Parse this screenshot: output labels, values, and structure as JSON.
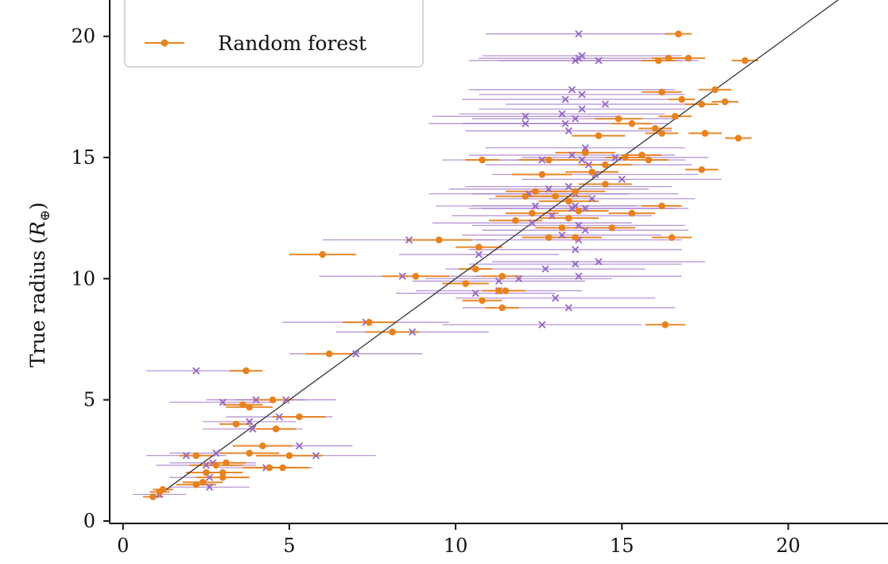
{
  "chart_data": {
    "type": "scatter",
    "title": "",
    "xlabel": "",
    "ylabel_main": "True radius (",
    "ylabel_symbol": "R",
    "ylabel_sub": "⊕",
    "ylabel_close": ")",
    "xlim": [
      -0.4,
      23.0
    ],
    "ylim": [
      -0.1,
      21.5
    ],
    "xticks": [
      0,
      5,
      10,
      15,
      20
    ],
    "yticks": [
      0,
      5,
      10,
      15,
      20
    ],
    "grid": false,
    "legend_position": "top-left",
    "legend_entries": [
      "Random forest"
    ],
    "reference_line": {
      "from": [
        0.9,
        0.9
      ],
      "to": [
        21.5,
        21.5
      ],
      "color": "#333333"
    },
    "series": [
      {
        "name": "Random forest",
        "marker": "circle",
        "color": "#e8821e",
        "points": [
          [
            0.9,
            1.0,
            0.3
          ],
          [
            1.2,
            1.3,
            0.3
          ],
          [
            1.1,
            1.2,
            0.3
          ],
          [
            2.2,
            1.5,
            0.6
          ],
          [
            2.4,
            1.6,
            0.6
          ],
          [
            2.5,
            2.0,
            0.6
          ],
          [
            2.8,
            2.3,
            0.8
          ],
          [
            3.0,
            2.0,
            0.6
          ],
          [
            3.1,
            2.4,
            0.6
          ],
          [
            2.2,
            2.7,
            0.5
          ],
          [
            3.0,
            1.8,
            0.8
          ],
          [
            4.8,
            2.2,
            0.8
          ],
          [
            4.4,
            2.2,
            0.8
          ],
          [
            5.0,
            2.7,
            1.0
          ],
          [
            4.2,
            3.1,
            0.9
          ],
          [
            3.8,
            2.8,
            0.9
          ],
          [
            3.4,
            4.0,
            0.5
          ],
          [
            3.6,
            4.8,
            0.6
          ],
          [
            4.5,
            5.0,
            0.6
          ],
          [
            3.8,
            4.7,
            0.7
          ],
          [
            4.6,
            3.8,
            0.6
          ],
          [
            5.3,
            4.3,
            0.8
          ],
          [
            3.7,
            6.2,
            0.5
          ],
          [
            6.2,
            6.9,
            0.7
          ],
          [
            8.1,
            7.8,
            0.8
          ],
          [
            7.4,
            8.2,
            0.8
          ],
          [
            6.0,
            11.0,
            1.0
          ],
          [
            8.8,
            10.1,
            1.0
          ],
          [
            9.5,
            11.6,
            1.0
          ],
          [
            10.3,
            9.8,
            0.7
          ],
          [
            10.8,
            9.1,
            0.6
          ],
          [
            10.8,
            14.9,
            0.5
          ],
          [
            10.6,
            10.4,
            0.5
          ],
          [
            10.7,
            11.3,
            0.7
          ],
          [
            11.3,
            9.5,
            0.5
          ],
          [
            11.4,
            8.8,
            0.5
          ],
          [
            11.5,
            9.5,
            0.6
          ],
          [
            11.4,
            10.1,
            0.6
          ],
          [
            11.8,
            12.4,
            0.8
          ],
          [
            12.3,
            12.7,
            0.8
          ],
          [
            12.1,
            13.4,
            0.9
          ],
          [
            12.6,
            14.3,
            0.9
          ],
          [
            12.8,
            14.9,
            0.9
          ],
          [
            13.0,
            13.4,
            1.0
          ],
          [
            13.4,
            13.2,
            0.9
          ],
          [
            13.6,
            13.6,
            0.9
          ],
          [
            13.7,
            12.8,
            0.9
          ],
          [
            13.9,
            15.2,
            0.9
          ],
          [
            14.1,
            14.4,
            0.8
          ],
          [
            14.3,
            15.9,
            0.8
          ],
          [
            14.5,
            14.7,
            0.8
          ],
          [
            14.9,
            16.6,
            0.7
          ],
          [
            15.1,
            15.0,
            0.6
          ],
          [
            15.3,
            16.4,
            0.6
          ],
          [
            15.6,
            15.1,
            0.6
          ],
          [
            15.8,
            14.9,
            0.6
          ],
          [
            16.0,
            16.2,
            0.5
          ],
          [
            16.2,
            16.0,
            0.5
          ],
          [
            16.2,
            17.7,
            0.6
          ],
          [
            16.4,
            19.1,
            0.5
          ],
          [
            16.6,
            16.7,
            0.5
          ],
          [
            16.7,
            20.1,
            0.4
          ],
          [
            16.8,
            17.4,
            0.4
          ],
          [
            17.0,
            19.1,
            0.5
          ],
          [
            17.4,
            17.2,
            0.5
          ],
          [
            17.5,
            16.0,
            0.5
          ],
          [
            17.4,
            14.5,
            0.5
          ],
          [
            17.8,
            17.8,
            0.5
          ],
          [
            18.1,
            17.3,
            0.4
          ],
          [
            18.5,
            15.8,
            0.4
          ],
          [
            18.7,
            19.0,
            0.4
          ],
          [
            16.1,
            19.0,
            0.5
          ],
          [
            16.2,
            13.0,
            0.6
          ],
          [
            16.5,
            11.7,
            0.6
          ],
          [
            16.3,
            8.1,
            0.6
          ],
          [
            15.3,
            12.7,
            0.7
          ],
          [
            14.7,
            12.1,
            0.7
          ],
          [
            14.5,
            13.9,
            0.8
          ],
          [
            13.6,
            11.7,
            0.8
          ],
          [
            13.2,
            12.1,
            0.8
          ],
          [
            12.8,
            11.7,
            0.8
          ],
          [
            12.4,
            13.6,
            0.9
          ],
          [
            13.4,
            12.5,
            0.9
          ]
        ]
      },
      {
        "name": "",
        "marker": "x",
        "color": "#9566c4",
        "points": [
          [
            1.1,
            1.1,
            0.8
          ],
          [
            1.9,
            2.7,
            1.2
          ],
          [
            2.5,
            2.3,
            1.5
          ],
          [
            2.6,
            1.8,
            1.2
          ],
          [
            2.7,
            2.4,
            1.3
          ],
          [
            2.8,
            2.8,
            1.4
          ],
          [
            2.6,
            1.4,
            1.2
          ],
          [
            4.3,
            2.2,
            1.4
          ],
          [
            5.3,
            3.1,
            1.6
          ],
          [
            5.8,
            2.7,
            1.8
          ],
          [
            3.9,
            3.8,
            1.5
          ],
          [
            3.8,
            4.1,
            1.4
          ],
          [
            4.7,
            4.3,
            1.6
          ],
          [
            3.0,
            4.9,
            1.6
          ],
          [
            4.9,
            5.0,
            1.5
          ],
          [
            4.0,
            5.0,
            1.5
          ],
          [
            2.2,
            6.2,
            1.5
          ],
          [
            7.0,
            6.9,
            2.0
          ],
          [
            8.7,
            7.8,
            2.3
          ],
          [
            7.3,
            8.2,
            2.5
          ],
          [
            8.4,
            10.1,
            2.5
          ],
          [
            8.6,
            11.6,
            2.6
          ],
          [
            10.6,
            9.4,
            2.4
          ],
          [
            10.7,
            11.0,
            2.4
          ],
          [
            11.3,
            9.5,
            2.5
          ],
          [
            11.3,
            9.9,
            2.6
          ],
          [
            11.9,
            10.0,
            2.8
          ],
          [
            12.1,
            16.7,
            2.8
          ],
          [
            12.1,
            16.4,
            2.9
          ],
          [
            12.4,
            13.0,
            3.0
          ],
          [
            12.6,
            14.9,
            3.0
          ],
          [
            12.2,
            13.5,
            3.0
          ],
          [
            12.8,
            13.7,
            3.0
          ],
          [
            12.6,
            8.1,
            3.0
          ],
          [
            12.7,
            10.4,
            3.0
          ],
          [
            13.0,
            9.2,
            3.0
          ],
          [
            13.2,
            11.8,
            3.0
          ],
          [
            13.3,
            17.4,
            3.1
          ],
          [
            13.4,
            16.1,
            3.1
          ],
          [
            13.3,
            16.4,
            3.1
          ],
          [
            13.5,
            15.1,
            3.1
          ],
          [
            13.4,
            13.8,
            3.1
          ],
          [
            13.5,
            12.9,
            3.1
          ],
          [
            13.7,
            12.2,
            3.2
          ],
          [
            13.6,
            19.0,
            3.2
          ],
          [
            13.7,
            20.1,
            2.8
          ],
          [
            13.7,
            19.1,
            3.0
          ],
          [
            13.8,
            19.2,
            3.0
          ],
          [
            13.5,
            17.8,
            3.1
          ],
          [
            13.8,
            17.6,
            3.1
          ],
          [
            13.8,
            17.0,
            3.1
          ],
          [
            13.6,
            16.6,
            3.1
          ],
          [
            13.6,
            13.0,
            3.1
          ],
          [
            13.8,
            14.9,
            3.1
          ],
          [
            13.9,
            12.9,
            3.1
          ],
          [
            13.7,
            11.6,
            3.1
          ],
          [
            13.6,
            11.2,
            3.2
          ],
          [
            13.6,
            10.6,
            3.2
          ],
          [
            13.4,
            8.8,
            3.2
          ],
          [
            13.9,
            12.0,
            3.1
          ],
          [
            14.0,
            14.7,
            3.1
          ],
          [
            14.1,
            13.3,
            3.1
          ],
          [
            14.2,
            14.3,
            3.1
          ],
          [
            14.3,
            19.0,
            3.0
          ],
          [
            14.3,
            10.7,
            3.2
          ],
          [
            14.5,
            17.2,
            3.0
          ],
          [
            14.8,
            15.0,
            2.8
          ],
          [
            15.0,
            14.1,
            3.0
          ],
          [
            13.9,
            15.4,
            3.0
          ],
          [
            12.3,
            12.3,
            3.0
          ],
          [
            12.9,
            12.6,
            3.0
          ],
          [
            13.2,
            16.8,
            3.1
          ],
          [
            13.6,
            13.5,
            3.1
          ],
          [
            13.7,
            10.1,
            3.1
          ]
        ]
      }
    ]
  }
}
